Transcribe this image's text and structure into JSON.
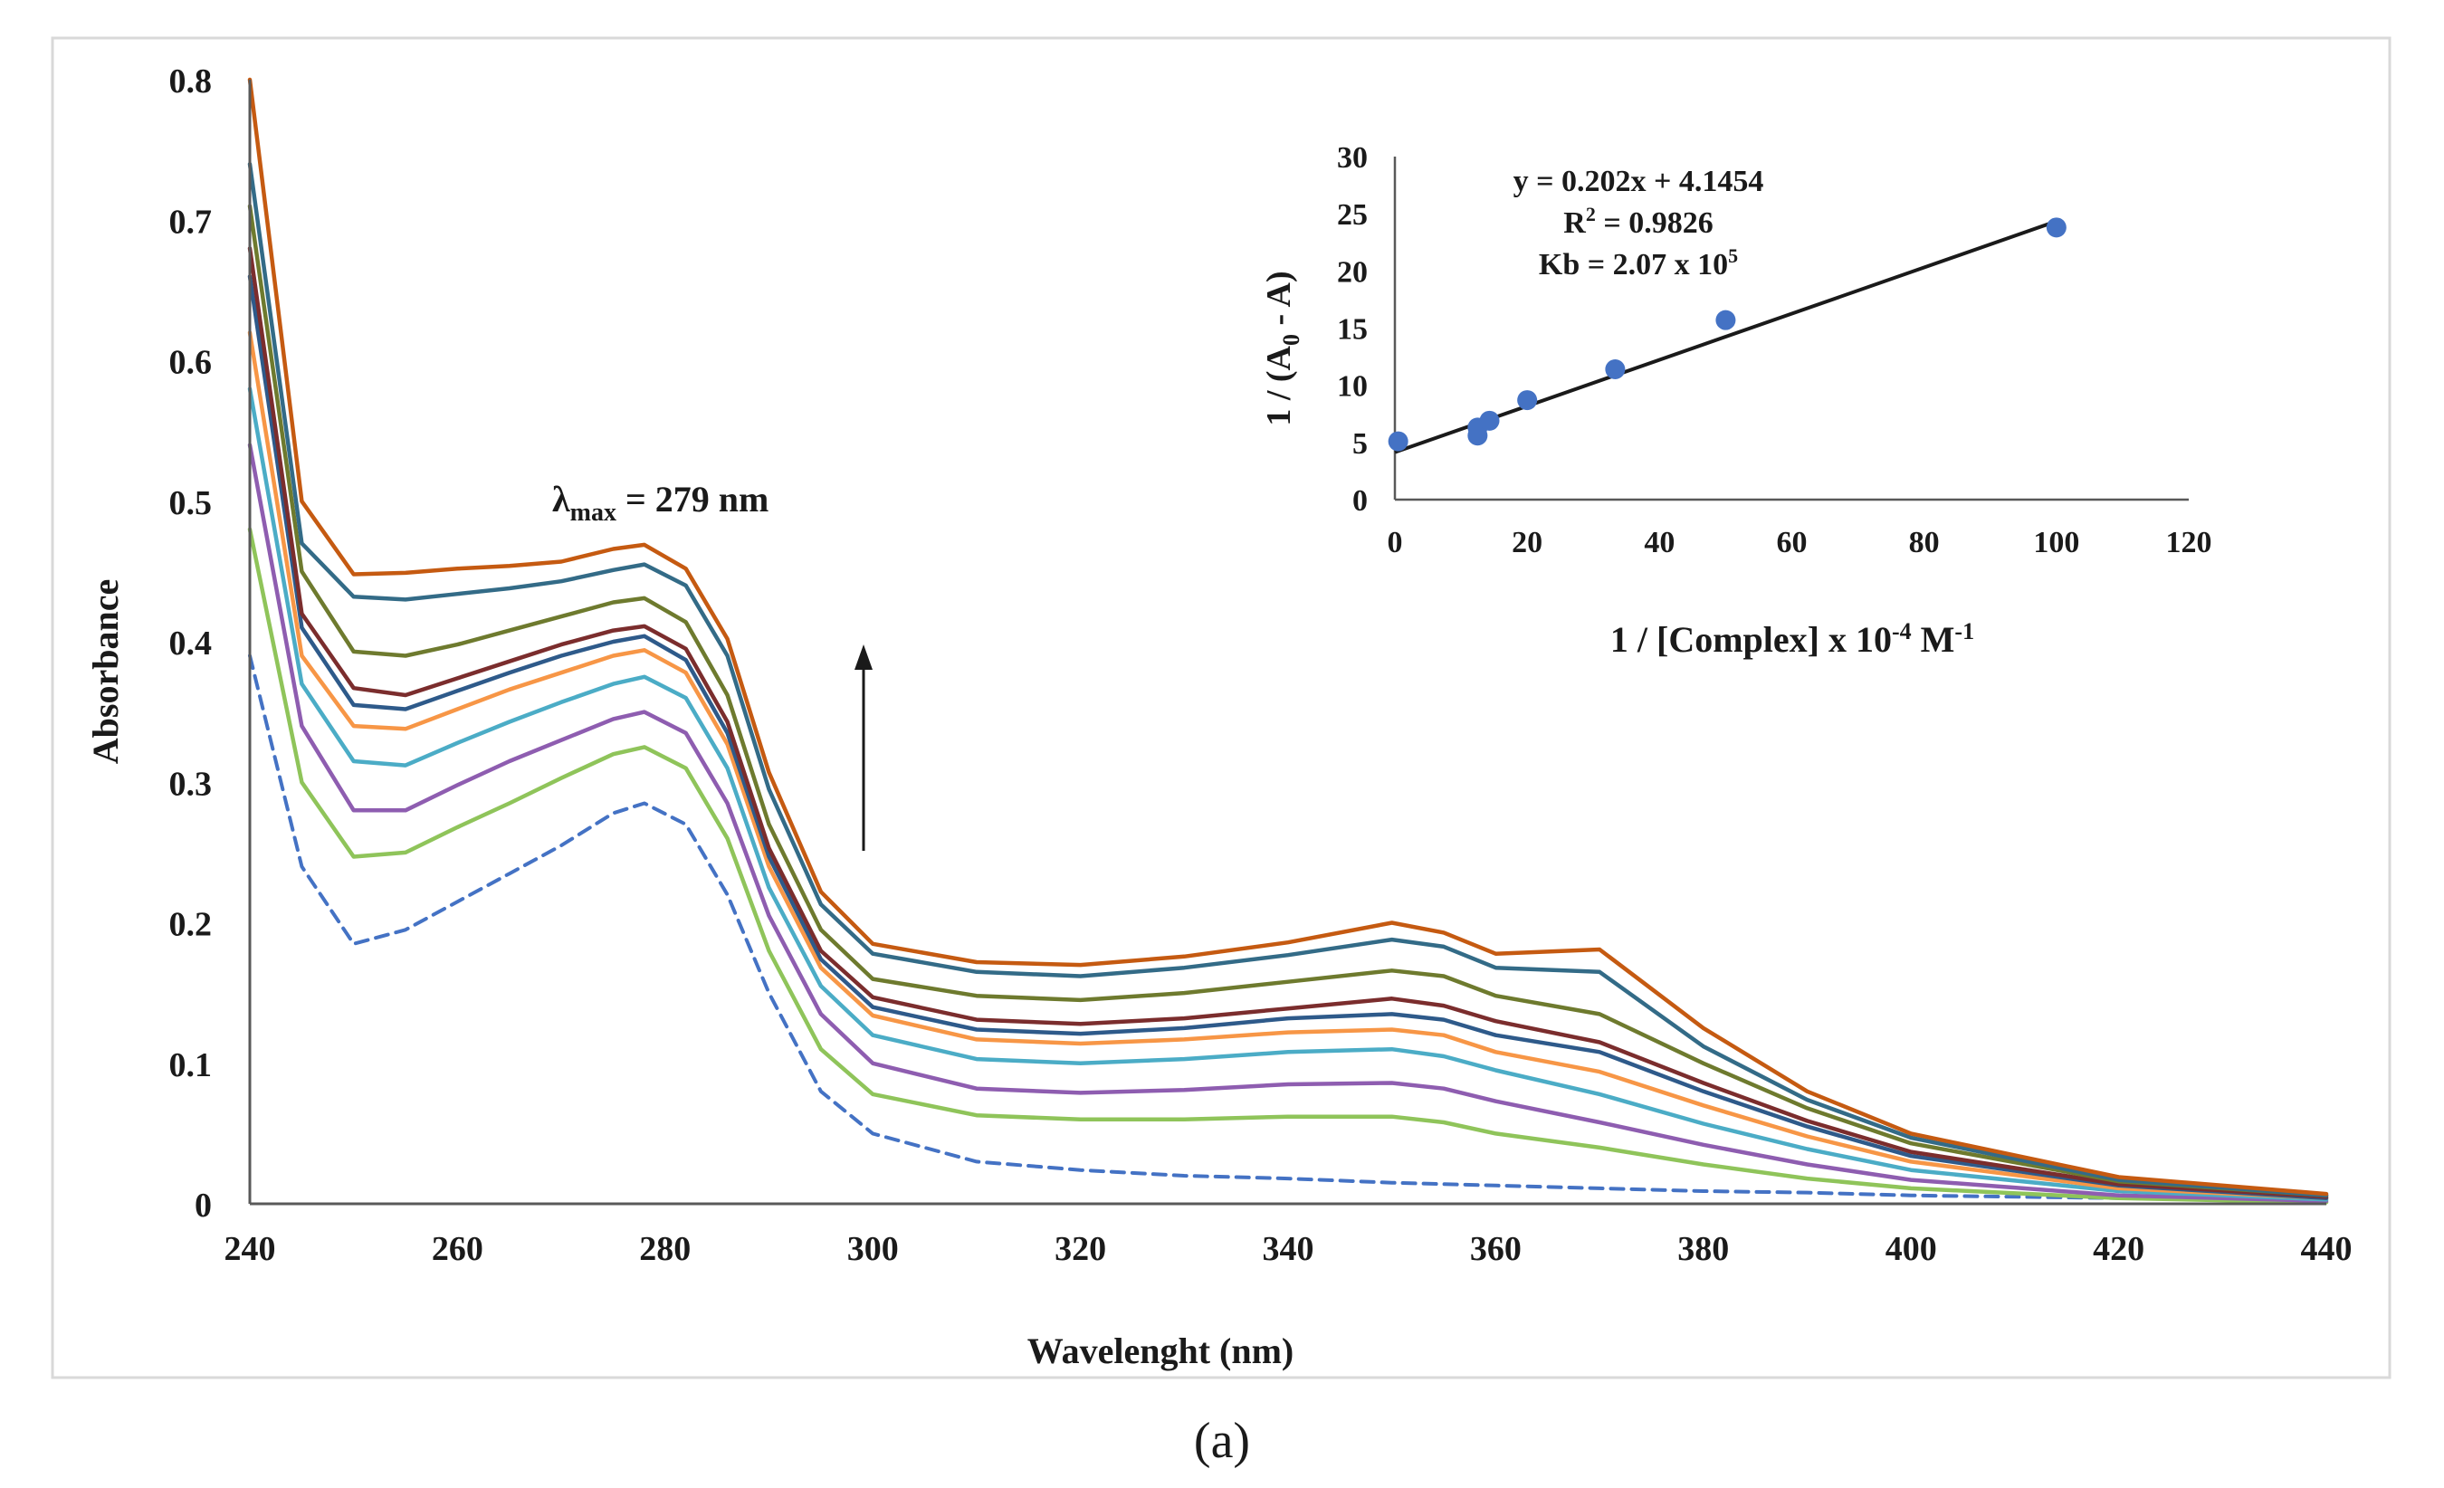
{
  "panel_label": "(a)",
  "chart_data": [
    {
      "type": "line",
      "xlabel": "Wavelenght (nm)",
      "ylabel": "Absorbance",
      "xlim": [
        240,
        440
      ],
      "ylim": [
        0,
        0.8
      ],
      "xticks": [
        240,
        260,
        280,
        300,
        320,
        340,
        360,
        380,
        400,
        420,
        440
      ],
      "yticks": [
        0,
        0.1,
        0.2,
        0.3,
        0.4,
        0.5,
        0.6,
        0.7,
        0.8
      ],
      "ytick_labels": [
        "0",
        "0.1",
        "0.2",
        "0.3",
        "0.4",
        "0.5",
        "0.6",
        "0.7",
        "0.8"
      ],
      "grid": false,
      "legend": "none",
      "annotations": {
        "lambda_symbol": "λ",
        "lambda_subscript": "max",
        "lambda_value": " = 279 nm"
      },
      "series": [
        {
          "color": "#4472C4",
          "dashed": true,
          "x": [
            240,
            245,
            250,
            255,
            260,
            265,
            270,
            275,
            278,
            282,
            286,
            290,
            295,
            300,
            310,
            320,
            330,
            340,
            350,
            360,
            370,
            380,
            390,
            400,
            420,
            440
          ],
          "y": [
            0.39,
            0.24,
            0.185,
            0.195,
            0.215,
            0.235,
            0.255,
            0.278,
            0.285,
            0.27,
            0.22,
            0.15,
            0.08,
            0.05,
            0.03,
            0.024,
            0.02,
            0.018,
            0.015,
            0.013,
            0.011,
            0.009,
            0.008,
            0.006,
            0.004,
            0.002
          ]
        },
        {
          "color": "#8FC45A",
          "x": [
            240,
            245,
            250,
            255,
            260,
            265,
            270,
            275,
            278,
            282,
            286,
            290,
            295,
            300,
            310,
            320,
            330,
            340,
            350,
            355,
            360,
            370,
            380,
            390,
            400,
            420,
            440
          ],
          "y": [
            0.48,
            0.3,
            0.247,
            0.25,
            0.268,
            0.285,
            0.303,
            0.32,
            0.325,
            0.31,
            0.26,
            0.18,
            0.11,
            0.078,
            0.063,
            0.06,
            0.06,
            0.062,
            0.062,
            0.058,
            0.05,
            0.04,
            0.028,
            0.018,
            0.011,
            0.004,
            0.001
          ]
        },
        {
          "color": "#8E5DB0",
          "x": [
            240,
            245,
            250,
            255,
            260,
            265,
            270,
            275,
            278,
            282,
            286,
            290,
            295,
            300,
            310,
            320,
            330,
            340,
            350,
            355,
            360,
            370,
            380,
            390,
            400,
            420,
            440
          ],
          "y": [
            0.54,
            0.34,
            0.28,
            0.28,
            0.298,
            0.315,
            0.33,
            0.345,
            0.35,
            0.335,
            0.285,
            0.205,
            0.135,
            0.1,
            0.082,
            0.079,
            0.081,
            0.085,
            0.086,
            0.082,
            0.073,
            0.058,
            0.042,
            0.028,
            0.017,
            0.006,
            0.002
          ]
        },
        {
          "color": "#4BACC6",
          "x": [
            240,
            245,
            250,
            255,
            260,
            265,
            270,
            275,
            278,
            282,
            286,
            290,
            295,
            300,
            310,
            320,
            330,
            340,
            350,
            355,
            360,
            370,
            380,
            390,
            400,
            420,
            440
          ],
          "y": [
            0.58,
            0.37,
            0.315,
            0.312,
            0.328,
            0.343,
            0.357,
            0.37,
            0.375,
            0.36,
            0.31,
            0.225,
            0.155,
            0.12,
            0.103,
            0.1,
            0.103,
            0.108,
            0.11,
            0.105,
            0.095,
            0.078,
            0.057,
            0.039,
            0.024,
            0.009,
            0.003
          ]
        },
        {
          "color": "#F79646",
          "x": [
            240,
            245,
            250,
            255,
            260,
            265,
            270,
            275,
            278,
            282,
            286,
            290,
            295,
            300,
            310,
            320,
            330,
            340,
            350,
            355,
            360,
            370,
            380,
            390,
            400,
            420,
            440
          ],
          "y": [
            0.62,
            0.39,
            0.34,
            0.338,
            0.352,
            0.366,
            0.378,
            0.39,
            0.394,
            0.378,
            0.327,
            0.24,
            0.168,
            0.134,
            0.117,
            0.114,
            0.117,
            0.122,
            0.124,
            0.12,
            0.108,
            0.094,
            0.07,
            0.048,
            0.03,
            0.011,
            0.004
          ]
        },
        {
          "color": "#2E5A8A",
          "x": [
            240,
            245,
            250,
            255,
            260,
            265,
            270,
            275,
            278,
            282,
            286,
            290,
            295,
            300,
            310,
            320,
            330,
            340,
            350,
            355,
            360,
            370,
            380,
            390,
            400,
            420,
            440
          ],
          "y": [
            0.66,
            0.41,
            0.355,
            0.352,
            0.365,
            0.378,
            0.39,
            0.4,
            0.404,
            0.387,
            0.335,
            0.247,
            0.174,
            0.14,
            0.124,
            0.121,
            0.125,
            0.132,
            0.135,
            0.131,
            0.12,
            0.108,
            0.08,
            0.055,
            0.034,
            0.013,
            0.004
          ]
        },
        {
          "color": "#7B2D2D",
          "x": [
            240,
            245,
            250,
            255,
            260,
            265,
            270,
            275,
            278,
            282,
            286,
            290,
            295,
            300,
            310,
            320,
            330,
            340,
            350,
            355,
            360,
            370,
            380,
            390,
            400,
            420,
            440
          ],
          "y": [
            0.68,
            0.42,
            0.367,
            0.362,
            0.374,
            0.386,
            0.398,
            0.408,
            0.411,
            0.395,
            0.343,
            0.253,
            0.18,
            0.147,
            0.131,
            0.128,
            0.132,
            0.139,
            0.146,
            0.141,
            0.13,
            0.115,
            0.086,
            0.059,
            0.037,
            0.014,
            0.005
          ]
        },
        {
          "color": "#6E7A2E",
          "x": [
            240,
            245,
            250,
            255,
            260,
            265,
            270,
            275,
            278,
            282,
            286,
            290,
            295,
            300,
            310,
            320,
            330,
            340,
            350,
            355,
            360,
            370,
            380,
            390,
            400,
            420,
            440
          ],
          "y": [
            0.71,
            0.45,
            0.393,
            0.39,
            0.398,
            0.408,
            0.418,
            0.428,
            0.431,
            0.414,
            0.362,
            0.27,
            0.195,
            0.16,
            0.148,
            0.145,
            0.15,
            0.158,
            0.166,
            0.162,
            0.148,
            0.135,
            0.1,
            0.068,
            0.043,
            0.016,
            0.006
          ]
        },
        {
          "color": "#336B87",
          "x": [
            240,
            245,
            250,
            255,
            260,
            265,
            270,
            275,
            278,
            282,
            286,
            290,
            295,
            300,
            310,
            320,
            330,
            340,
            350,
            355,
            360,
            370,
            380,
            390,
            400,
            420,
            440
          ],
          "y": [
            0.74,
            0.47,
            0.432,
            0.43,
            0.434,
            0.438,
            0.443,
            0.451,
            0.455,
            0.44,
            0.39,
            0.295,
            0.213,
            0.178,
            0.165,
            0.162,
            0.168,
            0.177,
            0.188,
            0.183,
            0.168,
            0.165,
            0.112,
            0.074,
            0.047,
            0.017,
            0.006
          ]
        },
        {
          "color": "#C55A11",
          "x": [
            240,
            245,
            250,
            255,
            260,
            265,
            270,
            275,
            278,
            282,
            286,
            290,
            295,
            300,
            310,
            320,
            330,
            340,
            350,
            355,
            360,
            370,
            380,
            390,
            400,
            420,
            440
          ],
          "y": [
            0.8,
            0.5,
            0.448,
            0.449,
            0.452,
            0.454,
            0.457,
            0.466,
            0.469,
            0.452,
            0.402,
            0.307,
            0.222,
            0.185,
            0.172,
            0.17,
            0.176,
            0.186,
            0.2,
            0.193,
            0.178,
            0.181,
            0.125,
            0.08,
            0.05,
            0.019,
            0.007
          ]
        }
      ]
    },
    {
      "type": "scatter",
      "xlabel_main": "1 / [Complex] x 10",
      "xlabel_exp": "-4",
      "xlabel_unit_M": " M",
      "xlabel_unit_exp": "-1",
      "ylabel_prefix": "1 / (A",
      "ylabel_sub": "0",
      "ylabel_suffix": " - A)",
      "xlim": [
        0,
        120
      ],
      "ylim": [
        0,
        30
      ],
      "xticks": [
        0,
        20,
        40,
        60,
        80,
        100,
        120
      ],
      "yticks": [
        0,
        5,
        10,
        15,
        20,
        25,
        30
      ],
      "marker_color": "#4472C4",
      "trendline_color": "#1a1a1a",
      "points": {
        "x": [
          0.5,
          12.5,
          12.5,
          14.3,
          20,
          33.3,
          50,
          100
        ],
        "y": [
          5.1,
          5.6,
          6.3,
          6.9,
          8.7,
          11.4,
          15.7,
          23.8
        ]
      },
      "trendline": {
        "slope": 0.202,
        "intercept": 4.1454,
        "x_range": [
          0,
          100
        ]
      },
      "annotations": {
        "equation": "y = 0.202x + 4.1454",
        "r2_label": "R",
        "r2_exp": "2",
        "r2_value": " = 0.9826",
        "kb_label": "Kb = 2.07 x 10",
        "kb_exp": "5"
      }
    }
  ]
}
